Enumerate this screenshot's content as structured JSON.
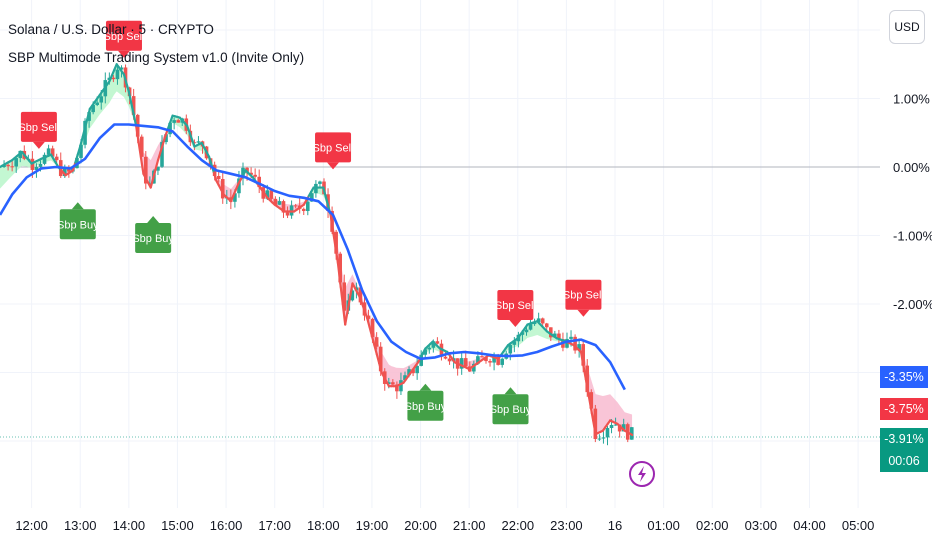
{
  "header": {
    "symbol_line": "Solana / U.S. Dollar · 5 · CRYPTO",
    "indicator_line": "SBP Multimode Trading System v1.0 (Invite Only)"
  },
  "currency_button": "USD",
  "price_tags": {
    "ma_value": "-3.35%",
    "sell_value": "-3.75%",
    "last_value": "-3.91%",
    "countdown": "00:06"
  },
  "colors": {
    "up": "#26a69a",
    "down": "#ef5350",
    "ma": "#2962ff",
    "buy_label": "#43a047",
    "sell_label": "#f23645",
    "fill_bull": "#b9f6ca",
    "fill_bear": "#f8bbd0",
    "tag_ma": "#2962ff",
    "tag_sell": "#f23645",
    "tag_last": "#089981"
  },
  "chart_data": {
    "type": "line",
    "title": "Solana / U.S. Dollar · 5 · CRYPTO",
    "ylabel": "%",
    "ylim": [
      -4.7,
      2.2
    ],
    "y_ticks": [
      {
        "value": 1.0,
        "label": "1.00%"
      },
      {
        "value": 0.0,
        "label": "0.00%"
      },
      {
        "value": -1.0,
        "label": "-1.00%"
      },
      {
        "value": -2.0,
        "label": "-2.00%"
      }
    ],
    "x_ticks": [
      "12:00",
      "13:00",
      "14:00",
      "15:00",
      "16:00",
      "17:00",
      "18:00",
      "19:00",
      "20:00",
      "21:00",
      "22:00",
      "23:00",
      "16",
      "01:00",
      "02:00",
      "03:00",
      "04:00",
      "05:00"
    ],
    "x_tick_hours": [
      12,
      13,
      14,
      15,
      16,
      17,
      18,
      19,
      20,
      21,
      22,
      23,
      24,
      25,
      26,
      27,
      28,
      29
    ],
    "xlim": [
      11.35,
      29.45
    ],
    "series": [
      {
        "name": "Price",
        "x": [
          11.35,
          11.6,
          11.8,
          12.0,
          12.2,
          12.4,
          12.55,
          12.7,
          12.85,
          13.0,
          13.2,
          13.4,
          13.6,
          13.75,
          13.9,
          14.0,
          14.15,
          14.3,
          14.45,
          14.6,
          14.75,
          14.9,
          15.05,
          15.2,
          15.35,
          15.5,
          15.65,
          15.8,
          15.95,
          16.1,
          16.25,
          16.4,
          16.55,
          16.7,
          16.85,
          17.0,
          17.2,
          17.4,
          17.6,
          17.8,
          18.0,
          18.15,
          18.3,
          18.45,
          18.6,
          18.75,
          18.9,
          19.05,
          19.2,
          19.35,
          19.5,
          19.65,
          19.8,
          19.95,
          20.1,
          20.25,
          20.4,
          20.55,
          20.7,
          20.85,
          21.0,
          21.2,
          21.4,
          21.6,
          21.8,
          22.0,
          22.2,
          22.4,
          22.6,
          22.8,
          23.0,
          23.15,
          23.3,
          23.45,
          23.6,
          23.75,
          23.9,
          24.05,
          24.2,
          24.35
        ],
        "values": [
          0.0,
          0.1,
          0.22,
          0.05,
          0.12,
          0.18,
          0.0,
          -0.12,
          -0.05,
          0.3,
          0.85,
          1.05,
          1.25,
          1.5,
          1.35,
          1.1,
          0.6,
          -0.1,
          -0.3,
          0.1,
          0.45,
          0.75,
          0.72,
          0.6,
          0.3,
          0.35,
          0.15,
          -0.2,
          -0.4,
          -0.5,
          -0.25,
          -0.05,
          -0.15,
          -0.3,
          -0.45,
          -0.55,
          -0.65,
          -0.65,
          -0.55,
          -0.3,
          -0.3,
          -0.7,
          -1.4,
          -2.3,
          -1.7,
          -1.9,
          -2.2,
          -2.6,
          -3.0,
          -3.2,
          -3.2,
          -3.15,
          -3.0,
          -2.85,
          -2.65,
          -2.55,
          -2.65,
          -2.7,
          -2.85,
          -2.9,
          -2.95,
          -2.85,
          -2.75,
          -2.8,
          -2.6,
          -2.5,
          -2.3,
          -2.25,
          -2.4,
          -2.5,
          -2.55,
          -2.6,
          -2.7,
          -3.3,
          -3.9,
          -3.85,
          -3.7,
          -3.75,
          -3.85,
          -3.91
        ]
      },
      {
        "name": "Moving Average",
        "x": [
          11.35,
          11.6,
          11.9,
          12.2,
          12.5,
          12.8,
          13.1,
          13.4,
          13.7,
          14.0,
          14.3,
          14.6,
          14.9,
          15.2,
          15.5,
          15.8,
          16.1,
          16.4,
          16.7,
          17.0,
          17.3,
          17.6,
          17.9,
          18.2,
          18.5,
          18.8,
          19.1,
          19.4,
          19.7,
          20.0,
          20.3,
          20.6,
          20.9,
          21.2,
          21.5,
          21.8,
          22.1,
          22.4,
          22.7,
          23.0,
          23.3,
          23.6,
          23.9,
          24.2
        ],
        "values": [
          -0.7,
          -0.4,
          -0.15,
          -0.02,
          0.0,
          -0.02,
          0.12,
          0.42,
          0.62,
          0.62,
          0.6,
          0.58,
          0.52,
          0.3,
          0.1,
          -0.05,
          -0.1,
          -0.15,
          -0.25,
          -0.35,
          -0.42,
          -0.45,
          -0.5,
          -0.7,
          -1.2,
          -1.8,
          -2.25,
          -2.55,
          -2.7,
          -2.8,
          -2.78,
          -2.72,
          -2.7,
          -2.72,
          -2.75,
          -2.76,
          -2.75,
          -2.7,
          -2.62,
          -2.55,
          -2.52,
          -2.6,
          -2.85,
          -3.25
        ]
      }
    ],
    "signals": [
      {
        "label": "Sbp Sell",
        "x": 13.9,
        "y": 1.58,
        "kind": "sell"
      },
      {
        "label": "Sbp Sell",
        "x": 12.15,
        "y": 0.25,
        "kind": "sell"
      },
      {
        "label": "Sbp Sell",
        "x": 18.2,
        "y": -0.05,
        "kind": "sell"
      },
      {
        "label": "Sbp Sell",
        "x": 21.95,
        "y": -2.35,
        "kind": "sell"
      },
      {
        "label": "Sbp Sell",
        "x": 23.35,
        "y": -2.2,
        "kind": "sell"
      },
      {
        "label": "Sbp Buy",
        "x": 12.95,
        "y": -0.5,
        "kind": "buy"
      },
      {
        "label": "Sbp Buy",
        "x": 14.5,
        "y": -0.7,
        "kind": "buy"
      },
      {
        "label": "Sbp Buy",
        "x": 20.1,
        "y": -3.15,
        "kind": "buy"
      },
      {
        "label": "Sbp Buy",
        "x": 21.85,
        "y": -3.2,
        "kind": "buy"
      }
    ],
    "legend": "none",
    "grid": true
  }
}
